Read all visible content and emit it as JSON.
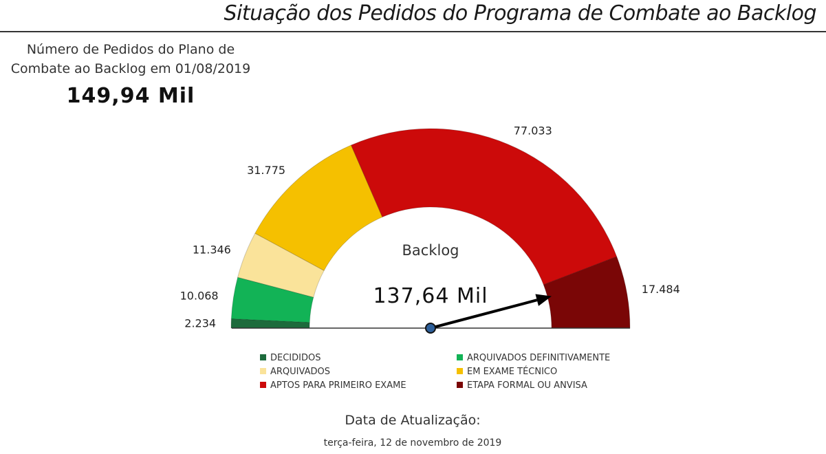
{
  "title": "Situação dos Pedidos do Programa de Combate ao Backlog",
  "plan_card": {
    "label": "Número de Pedidos do Plano de Combate ao Backlog em 01/08/2019",
    "value": "149,94 Mil"
  },
  "gauge": {
    "center_label": "Backlog",
    "center_value": "137,64 Mil"
  },
  "update": {
    "label": "Data de Atualização:",
    "date": "terça-feira, 12 de novembro de 2019"
  },
  "chart_data": {
    "type": "gauge",
    "title": "",
    "categories": [
      "DECIDIDOS",
      "ARQUIVADOS DEFINITIVAMENTE",
      "ARQUIVADOS",
      "EM EXAME TÉCNICO",
      "APTOS PARA PRIMEIRO EXAME",
      "ETAPA FORMAL OU ANVISA"
    ],
    "values": [
      2234,
      10068,
      11346,
      31775,
      77033,
      17484
    ],
    "value_labels": [
      "2.234",
      "10.068",
      "11.346",
      "31.775",
      "77.033",
      "17.484"
    ],
    "colors": [
      "#1d6b3c",
      "#12b356",
      "#fae39a",
      "#f5c000",
      "#cc0a0a",
      "#7a0606"
    ],
    "pointer_label": "137,64 Mil",
    "pointer_value": 137640,
    "total": 149940,
    "legend_position": "bottom"
  }
}
